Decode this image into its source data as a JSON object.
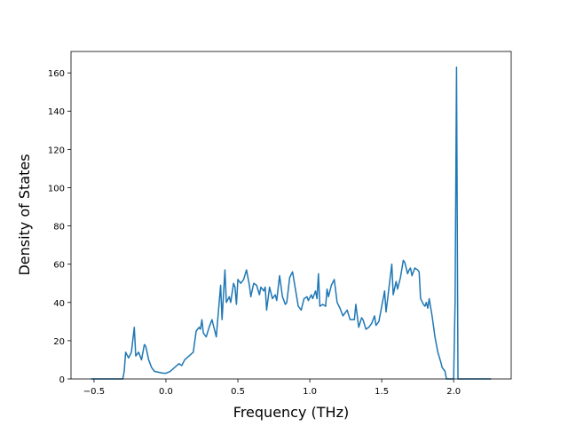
{
  "chart_data": {
    "type": "line",
    "xlabel": "Frequency (THz)",
    "ylabel": "Density of States",
    "x": [
      -0.52,
      -0.3,
      -0.29,
      -0.28,
      -0.26,
      -0.24,
      -0.22,
      -0.21,
      -0.19,
      -0.17,
      -0.15,
      -0.14,
      -0.12,
      -0.1,
      -0.08,
      -0.05,
      -0.02,
      0.0,
      0.03,
      0.06,
      0.09,
      0.11,
      0.13,
      0.16,
      0.19,
      0.21,
      0.23,
      0.24,
      0.25,
      0.26,
      0.28,
      0.3,
      0.32,
      0.34,
      0.35,
      0.37,
      0.38,
      0.39,
      0.41,
      0.42,
      0.44,
      0.45,
      0.47,
      0.48,
      0.49,
      0.5,
      0.52,
      0.54,
      0.56,
      0.58,
      0.59,
      0.61,
      0.63,
      0.65,
      0.66,
      0.68,
      0.69,
      0.7,
      0.72,
      0.74,
      0.76,
      0.77,
      0.79,
      0.81,
      0.83,
      0.84,
      0.86,
      0.88,
      0.9,
      0.92,
      0.94,
      0.96,
      0.98,
      0.99,
      1.01,
      1.02,
      1.04,
      1.05,
      1.06,
      1.07,
      1.09,
      1.11,
      1.12,
      1.13,
      1.15,
      1.17,
      1.19,
      1.21,
      1.23,
      1.26,
      1.28,
      1.31,
      1.32,
      1.34,
      1.36,
      1.37,
      1.39,
      1.41,
      1.43,
      1.45,
      1.46,
      1.48,
      1.5,
      1.52,
      1.53,
      1.57,
      1.58,
      1.6,
      1.61,
      1.63,
      1.65,
      1.66,
      1.68,
      1.69,
      1.7,
      1.71,
      1.73,
      1.75,
      1.76,
      1.77,
      1.79,
      1.8,
      1.81,
      1.82,
      1.83,
      1.85,
      1.87,
      1.89,
      1.91,
      1.92,
      1.94,
      1.95,
      2.0,
      2.01,
      2.02,
      2.03,
      2.26
    ],
    "series": [
      {
        "color": "#1f77b4",
        "values": [
          0,
          0,
          4,
          14,
          11,
          14,
          27,
          12,
          14,
          10,
          18,
          17,
          10,
          6,
          4,
          3.5,
          3,
          3,
          4,
          6,
          8,
          7,
          10,
          12,
          14,
          25,
          27,
          26,
          31,
          24,
          22,
          27,
          31,
          25,
          22,
          40,
          49,
          31,
          57,
          40,
          43,
          40,
          50,
          48,
          39,
          52,
          50,
          52,
          57,
          49,
          43,
          50,
          49,
          44,
          48,
          46,
          48,
          36,
          48,
          42,
          44,
          41,
          54,
          43,
          39,
          40,
          53,
          56,
          47,
          38,
          36,
          42,
          43,
          41,
          44,
          42,
          46,
          42,
          55,
          38,
          39,
          38,
          47,
          43,
          49,
          52,
          40,
          37,
          33,
          36,
          31,
          31,
          39,
          27,
          32,
          31,
          26,
          27,
          29,
          33,
          28,
          30,
          38,
          46,
          35,
          60,
          44,
          51,
          47,
          53,
          62,
          61,
          55,
          57,
          58,
          54,
          58,
          57,
          56,
          42,
          39,
          38,
          40,
          37,
          42,
          33,
          22,
          14,
          9,
          6,
          4,
          0,
          0,
          40,
          163,
          0,
          0
        ]
      }
    ],
    "xlim": [
      -0.66,
      2.4
    ],
    "ylim": [
      0,
      171.2
    ],
    "xticks": [
      {
        "value": -0.5,
        "label": "−0.5"
      },
      {
        "value": 0.0,
        "label": "0.0"
      },
      0.5,
      {
        "value": 1.0,
        "label": "1.0"
      },
      1.5,
      {
        "value": 2.0,
        "label": "2.0"
      }
    ],
    "yticks": [
      0,
      20,
      40,
      60,
      80,
      100,
      120,
      140,
      160
    ]
  }
}
